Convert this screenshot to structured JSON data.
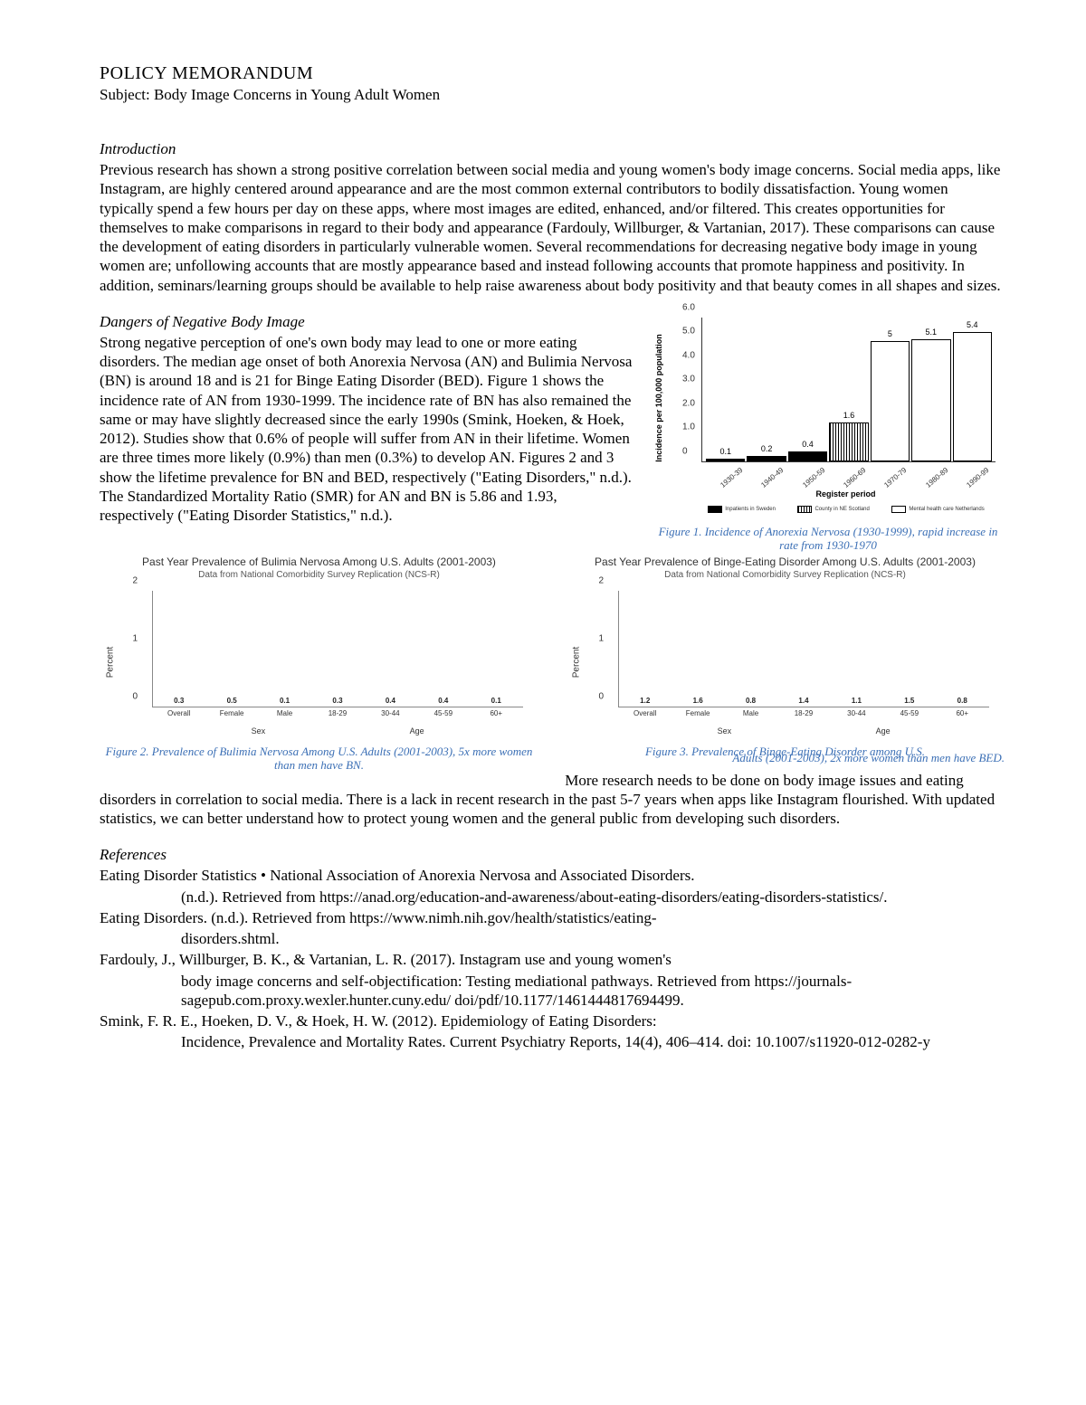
{
  "doc": {
    "title": "POLICY MEMORANDUM",
    "subject": "Subject: Body Image Concerns in Young Adult Women"
  },
  "intro": {
    "heading": "Introduction",
    "body": "Previous research has shown a strong positive correlation between social media and young women's body image concerns. Social media apps, like Instagram, are highly centered around appearance and are the most common external contributors to bodily dissatisfaction. Young women typically spend a few hours per day on these apps, where most images are edited, enhanced, and/or filtered. This creates opportunities for themselves to make comparisons in regard to their body and appearance (Fardouly, Willburger, & Vartanian, 2017). These comparisons can cause the development of eating disorders in particularly vulnerable women. Several recommendations for decreasing negative body image in young women are; unfollowing accounts that are mostly appearance based and instead following accounts that promote happiness and positivity. In addition, seminars/learning groups should be available to help raise awareness about body positivity and that beauty comes in all shapes and sizes."
  },
  "dangers": {
    "heading": "Dangers of Negative Body Image",
    "body": "Strong negative perception of one's own body may lead to one or more eating disorders. The median age onset of both Anorexia Nervosa (AN) and Bulimia Nervosa (BN) is around 18 and is 21 for Binge Eating Disorder (BED). Figure 1 shows the incidence rate of AN from 1930-1999. The incidence rate of BN has also remained the same or may have slightly decreased since the early 1990s (Smink, Hoeken, & Hoek, 2012). Studies show that 0.6% of people will suffer from AN in their lifetime. Women are three times more likely (0.9%) than men (0.3%) to develop AN. Figures 2 and 3 show the lifetime prevalence for BN and BED, respectively (\"Eating Disorders,\" n.d.). The Standardized Mortality Ratio (SMR) for AN and BN is 5.86 and 1.93, respectively (\"Eating Disorder Statistics,\" n.d.)."
  },
  "fig1": {
    "type": "bar",
    "caption": "Figure 1. Incidence of Anorexia Nervosa (1930-1999), rapid increase in rate from 1930-1970",
    "ylabel": "Incidence per 100,000 population",
    "xlabel": "Register period",
    "ylim": [
      0,
      6.0
    ],
    "yticks": [
      "0",
      "1.0",
      "2.0",
      "3.0",
      "4.0",
      "5.0",
      "6.0"
    ],
    "categories": [
      "1930-39",
      "1940-49",
      "1950-59",
      "1960-69",
      "1970-79",
      "1980-89",
      "1990-99"
    ],
    "values": [
      0.1,
      0.2,
      0.4,
      1.6,
      5.0,
      5.1,
      5.4
    ],
    "bar_fills": [
      "#000000",
      "#000000",
      "#000000",
      "hatched",
      "#ffffff",
      "#ffffff",
      "#ffffff"
    ],
    "legend": [
      "Inpatients in Sweden",
      "County in NE Scotland",
      "Mental health care Netherlands"
    ],
    "legend_fills": [
      "#000000",
      "hatched",
      "#ffffff"
    ],
    "border_color": "#000000",
    "background_color": "#ffffff"
  },
  "fig2": {
    "type": "grouped-bar",
    "title": "Past Year Prevalence of Bulimia Nervosa Among U.S. Adults (2001-2003)",
    "subtitle": "Data from National Comorbidity Survey Replication (NCS-R)",
    "caption": "Figure 2. Prevalence of Bulimia Nervosa Among U.S. Adults (2001-2003), 5x more women than men have BN.",
    "ylabel": "Percent",
    "ylim": [
      0,
      2
    ],
    "yticks": [
      "0",
      "1",
      "2"
    ],
    "bars": [
      {
        "label": "Overall",
        "value": 0.3,
        "color": "#1f3a5f"
      },
      {
        "label": "Female",
        "value": 0.5,
        "color": "#3fa9c9"
      },
      {
        "label": "Male",
        "value": 0.1,
        "color": "#1f3a5f"
      },
      {
        "label": "18-29",
        "value": 0.3,
        "color": "#1f3a5f"
      },
      {
        "label": "30-44",
        "value": 0.4,
        "color": "#1f3a5f"
      },
      {
        "label": "45-59",
        "value": 0.4,
        "color": "#1f3a5f"
      },
      {
        "label": "60+",
        "value": 0.1,
        "color": "#1f3a5f"
      }
    ],
    "group_labels": [
      {
        "text": "Sex",
        "start": 1,
        "end": 3
      },
      {
        "text": "Age",
        "start": 3,
        "end": 7
      }
    ],
    "background_color": "#ffffff"
  },
  "fig3": {
    "type": "grouped-bar",
    "title": "Past Year Prevalence of Binge-Eating Disorder Among U.S. Adults (2001-2003)",
    "subtitle": "Data from National Comorbidity Survey Replication (NCS-R)",
    "caption": "Figure 3. Prevalence of Binge-Eating Disorder among U.S.",
    "overlap_caption": "Adults (2001-2003), 2x more women than men have BED.",
    "ylabel": "Percent",
    "ylim": [
      0,
      2
    ],
    "yticks": [
      "0",
      "1",
      "2"
    ],
    "bars": [
      {
        "label": "Overall",
        "value": 1.2,
        "color": "#1f3a5f"
      },
      {
        "label": "Female",
        "value": 1.6,
        "color": "#3fa9c9"
      },
      {
        "label": "Male",
        "value": 0.8,
        "color": "#1f3a5f"
      },
      {
        "label": "18-29",
        "value": 1.4,
        "color": "#1f3a5f"
      },
      {
        "label": "30-44",
        "value": 1.1,
        "color": "#1f3a5f"
      },
      {
        "label": "45-59",
        "value": 1.5,
        "color": "#1f3a5f"
      },
      {
        "label": "60+",
        "value": 0.8,
        "color": "#1f3a5f"
      }
    ],
    "group_labels": [
      {
        "text": "Sex",
        "start": 1,
        "end": 3
      },
      {
        "text": "Age",
        "start": 3,
        "end": 7
      }
    ],
    "background_color": "#ffffff"
  },
  "closing": {
    "lead": "More research needs to be done on body image issues and",
    "rest": "eating disorders in correlation to social media. There is a lack in recent research in the past 5-7 years when apps like Instagram flourished. With updated statistics, we can better understand how to protect young women and the general public from developing such disorders."
  },
  "references": {
    "heading": "References",
    "items": [
      {
        "line1": "Eating Disorder Statistics • National Association of Anorexia Nervosa and Associated Disorders.",
        "cont": [
          "(n.d.). Retrieved from https://anad.org/education-and-awareness/about-eating-disorders/eating-disorders-statistics/."
        ]
      },
      {
        "line1": "Eating Disorders. (n.d.). Retrieved from https://www.nimh.nih.gov/health/statistics/eating-",
        "cont": [
          "disorders.shtml."
        ]
      },
      {
        "line1": "Fardouly, J., Willburger, B. K., & Vartanian, L. R. (2017). Instagram use and young women's",
        "cont": [
          "body image concerns and self-objectification: Testing mediational pathways. Retrieved from https://journals-sagepub.com.proxy.wexler.hunter.cuny.edu/ doi/pdf/10.1177/1461444817694499."
        ]
      },
      {
        "line1": "Smink, F. R. E., Hoeken, D. V., & Hoek, H. W. (2012). Epidemiology of Eating Disorders:",
        "cont": [
          "Incidence, Prevalence and Mortality Rates. Current Psychiatry Reports, 14(4), 406–414. doi: 10.1007/s11920-012-0282-y"
        ]
      }
    ]
  },
  "colors": {
    "caption_blue": "#3b6fb5",
    "dark_bar": "#1f3a5f",
    "light_bar": "#3fa9c9"
  }
}
